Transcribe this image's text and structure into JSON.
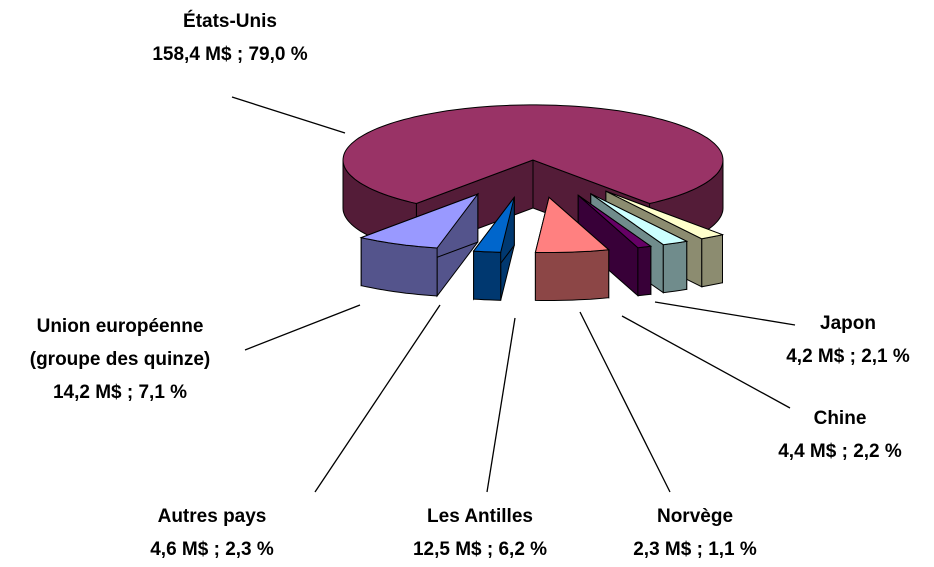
{
  "chart_data": {
    "type": "pie3d",
    "categories": [
      "États-Unis",
      "Union européenne (groupe des quinze)",
      "Autres pays",
      "Les Antilles",
      "Norvège",
      "Chine",
      "Japon"
    ],
    "values": [
      158.4,
      14.2,
      4.6,
      12.5,
      2.3,
      4.4,
      4.2
    ],
    "percents": [
      79.0,
      7.1,
      2.3,
      6.2,
      1.1,
      2.2,
      2.1
    ],
    "value_labels": [
      "158,4 M$ ; 79,0 %",
      "14,2 M$ ; 7,1 %",
      "4,6 M$ ; 2,3 %",
      "12,5 M$ ; 6,2 %",
      "2,3 M$ ; 1,1 %",
      "4,4 M$ ; 2,2 %",
      "4,2 M$ ; 2,1 %"
    ],
    "colors": [
      "#993366",
      "#9999ff",
      "#0066cc",
      "#ff8080",
      "#660066",
      "#ccffff",
      "#ffffcc"
    ]
  }
}
